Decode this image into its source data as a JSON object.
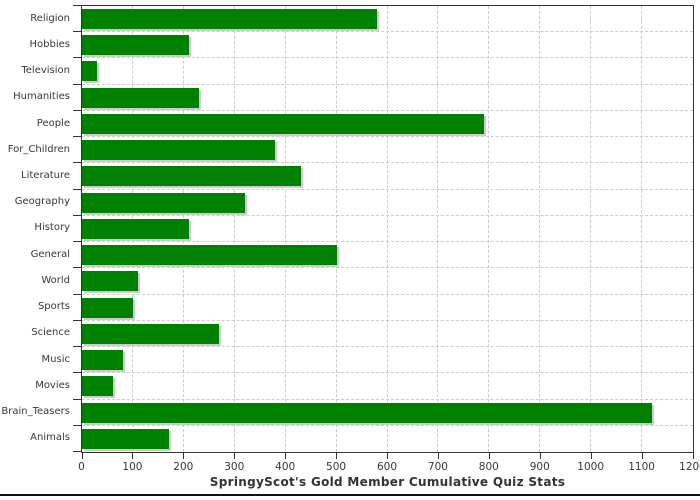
{
  "chart_data": {
    "type": "bar",
    "orientation": "horizontal",
    "title": "SpringyScot's Gold Member Cumulative Quiz Stats",
    "categories": [
      "Religion",
      "Hobbies",
      "Television",
      "Humanities",
      "People",
      "For_Children",
      "Literature",
      "Geography",
      "History",
      "General",
      "World",
      "Sports",
      "Science",
      "Music",
      "Movies",
      "Brain_Teasers",
      "Animals"
    ],
    "values": [
      580,
      210,
      30,
      230,
      790,
      380,
      430,
      320,
      210,
      500,
      110,
      100,
      270,
      80,
      60,
      1120,
      170
    ],
    "xlabel": "",
    "ylabel": "",
    "xlim": [
      0,
      1200
    ],
    "x_ticks": [
      0,
      100,
      200,
      300,
      400,
      500,
      600,
      700,
      800,
      900,
      1000,
      1100,
      1200
    ],
    "grid": "dashed",
    "legend": "none",
    "colors": {
      "bar": "#008000",
      "bar_shadow": "#cccccc",
      "grid": "#cccccc",
      "axis": "#333333",
      "text": "#383838",
      "title": "#333333",
      "bottom_rule": "#111111",
      "background": "#ffffff"
    }
  }
}
